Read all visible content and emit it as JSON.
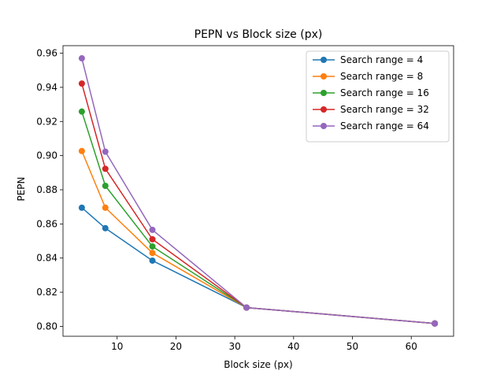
{
  "chart_data": {
    "type": "line",
    "title": "PEPN vs Block size (px)",
    "xlabel": "Block size (px)",
    "ylabel": "PEPN",
    "x": [
      4,
      8,
      16,
      32,
      64
    ],
    "xlim": [
      0.8,
      67.2
    ],
    "ylim": [
      0.7942,
      0.9644
    ],
    "xticks": [
      10,
      20,
      30,
      40,
      50,
      60
    ],
    "yticks": [
      0.8,
      0.82,
      0.84,
      0.86,
      0.88,
      0.9,
      0.92,
      0.94,
      0.96
    ],
    "ytick_labels": [
      "0.80",
      "0.82",
      "0.84",
      "0.86",
      "0.88",
      "0.90",
      "0.92",
      "0.94",
      "0.96"
    ],
    "grid": false,
    "legend_position": "top-right",
    "series": [
      {
        "name": "Search range = 4",
        "color": "#1f77b4",
        "values": [
          0.8695,
          0.8575,
          0.8385,
          0.811,
          0.8017
        ]
      },
      {
        "name": "Search range = 8",
        "color": "#ff7f0e",
        "values": [
          0.9027,
          0.8695,
          0.843,
          0.811,
          0.8017
        ]
      },
      {
        "name": "Search range = 16",
        "color": "#2ca02c",
        "values": [
          0.9258,
          0.8823,
          0.8468,
          0.811,
          0.8017
        ]
      },
      {
        "name": "Search range = 32",
        "color": "#d62728",
        "values": [
          0.9422,
          0.8923,
          0.851,
          0.811,
          0.8017
        ]
      },
      {
        "name": "Search range = 64",
        "color": "#9467bd",
        "values": [
          0.957,
          0.9023,
          0.8565,
          0.811,
          0.8017
        ]
      }
    ]
  }
}
